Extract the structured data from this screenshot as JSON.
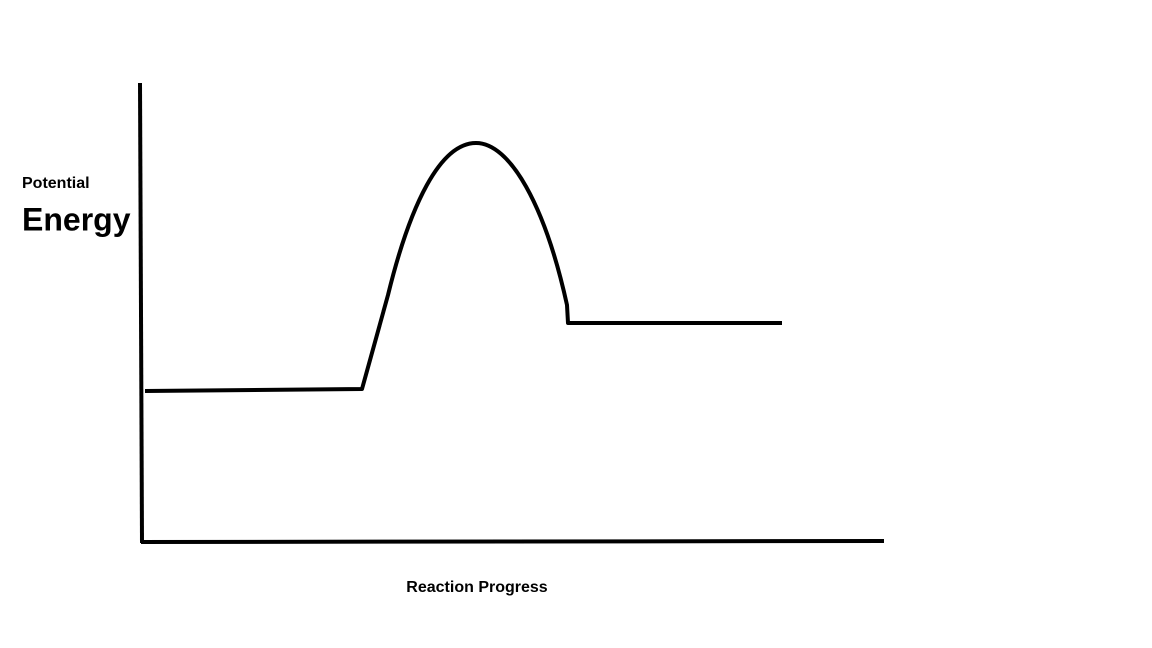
{
  "y_axis_label": {
    "line1": "Potential",
    "line2": "Energy"
  },
  "x_axis_label": "Reaction Progress"
}
